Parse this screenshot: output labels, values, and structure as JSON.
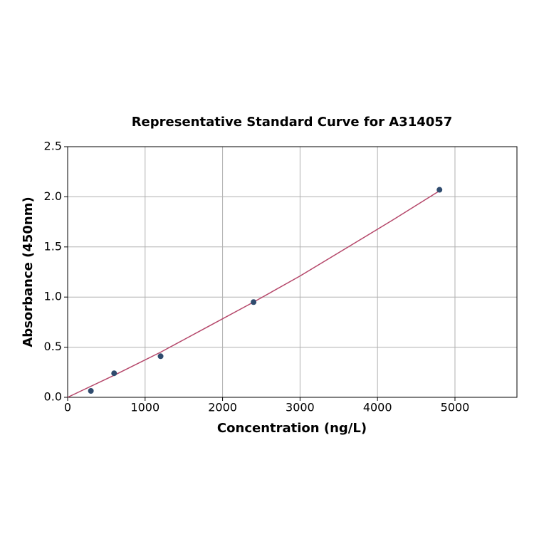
{
  "chart_data": {
    "type": "scatter",
    "title": "Representative Standard Curve for A314057",
    "x_label": "Concentration (ng/L)",
    "y_label": "Absorbance (450nm)",
    "xlim": [
      0,
      5800
    ],
    "ylim": [
      0,
      2.5
    ],
    "xticks": [
      0,
      1000,
      2000,
      3000,
      4000,
      5000
    ],
    "yticks": [
      {
        "value": 0,
        "label": "0.0"
      },
      0.5,
      {
        "value": 1,
        "label": "1.0"
      },
      1.5,
      {
        "value": 2,
        "label": "2.0"
      },
      2.5
    ],
    "grid": true,
    "points": {
      "color": "#2f4b6e",
      "x": [
        300,
        600,
        1200,
        2400,
        4800
      ],
      "y": [
        0.064,
        0.24,
        0.41,
        0.95,
        2.07
      ]
    },
    "curve": {
      "color": "#b5476a",
      "x": [
        0,
        600,
        1200,
        1800,
        2400,
        3000,
        3600,
        4200,
        4800
      ],
      "y": [
        0,
        0.22,
        0.45,
        0.7,
        0.95,
        1.21,
        1.49,
        1.77,
        2.06
      ]
    }
  }
}
